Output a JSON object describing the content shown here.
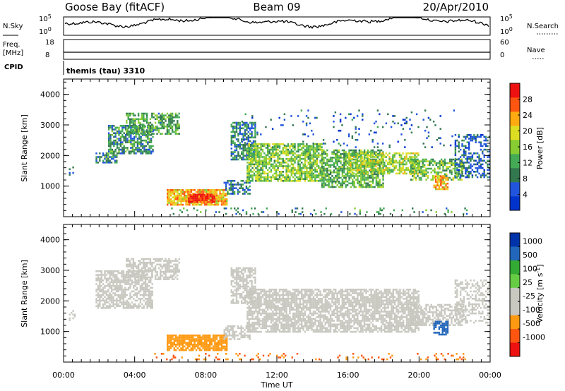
{
  "header": {
    "station": "Goose Bay (fitACF)",
    "beam": "Beam 09",
    "date": "20/Apr/2010"
  },
  "noise_panel": {
    "left_label": "N.Sky",
    "right_label": "N.Search",
    "left_ticks": [
      "10^5",
      "10^0"
    ],
    "right_ticks": [
      "10^5",
      "10^0"
    ]
  },
  "freq_panel": {
    "left_label": "Freq.",
    "left_unit": "[MHz]",
    "right_label": "Nave",
    "left_ticks": [
      "18",
      "8"
    ],
    "right_ticks": [
      "60",
      "0"
    ]
  },
  "cpid_panel": {
    "label": "CPID",
    "value": "themis (tau) 3310"
  },
  "colors": {
    "power": [
      "#0033cc",
      "#2255dd",
      "#33774f",
      "#44aa55",
      "#88cc33",
      "#dddd22",
      "#ffaa11",
      "#ff5511",
      "#ee1111"
    ],
    "velocity": [
      "#ee1111",
      "#ff5511",
      "#ff9911",
      "#c8c8c0",
      "#c8c8c0",
      "#66cc44",
      "#33aa33",
      "#2266bb",
      "#0033aa"
    ]
  },
  "chart_data": [
    {
      "type": "heatmap",
      "name": "power",
      "xlabel": "",
      "ylabel": "Slant Range [km]",
      "yticks": [
        "1000",
        "2000",
        "3000",
        "4000"
      ],
      "ylim": [
        0,
        4500
      ],
      "xlim": [
        0,
        24
      ],
      "colorbar": {
        "label": "Power [dB]",
        "ticks": [
          "4",
          "8",
          "12",
          "16",
          "20",
          "24",
          "28"
        ],
        "range": [
          0,
          32
        ]
      },
      "regions": [
        {
          "t0": 0.3,
          "t1": 0.6,
          "r0": 1350,
          "r1": 1700,
          "value": 6,
          "density": 0.4
        },
        {
          "t0": 1.8,
          "t1": 3.0,
          "r0": 1750,
          "r1": 2100,
          "value": 10,
          "density": 0.7
        },
        {
          "t0": 2.5,
          "t1": 5.0,
          "r0": 2100,
          "r1": 3000,
          "value": 10,
          "density": 0.7
        },
        {
          "t0": 3.5,
          "t1": 6.5,
          "r0": 2700,
          "r1": 3400,
          "value": 12,
          "density": 0.6
        },
        {
          "t0": 5.8,
          "t1": 9.2,
          "r0": 400,
          "r1": 900,
          "value": 22,
          "density": 0.85
        },
        {
          "t0": 7.0,
          "t1": 8.5,
          "r0": 450,
          "r1": 750,
          "value": 29,
          "density": 0.9
        },
        {
          "t0": 9.0,
          "t1": 10.5,
          "r0": 750,
          "r1": 1200,
          "value": 8,
          "density": 0.6
        },
        {
          "t0": 9.4,
          "t1": 10.8,
          "r0": 1900,
          "r1": 3100,
          "value": 9,
          "density": 0.65
        },
        {
          "t0": 10.3,
          "t1": 14.5,
          "r0": 1200,
          "r1": 2400,
          "value": 15,
          "density": 0.75
        },
        {
          "t0": 14.5,
          "t1": 18.0,
          "r0": 1000,
          "r1": 2200,
          "value": 13,
          "density": 0.7
        },
        {
          "t0": 16.0,
          "t1": 20.0,
          "r0": 1400,
          "r1": 2100,
          "value": 17,
          "density": 0.65
        },
        {
          "t0": 19.5,
          "t1": 22.5,
          "r0": 1200,
          "r1": 1900,
          "value": 14,
          "density": 0.6
        },
        {
          "t0": 20.8,
          "t1": 21.6,
          "r0": 900,
          "r1": 1350,
          "value": 22,
          "density": 0.7
        },
        {
          "t0": 22.0,
          "t1": 24.0,
          "r0": 1300,
          "r1": 2700,
          "value": 7,
          "density": 0.4
        },
        {
          "t0": 10.0,
          "t1": 22.0,
          "r0": 2300,
          "r1": 3500,
          "value": 6,
          "density": 0.05
        },
        {
          "t0": 5.0,
          "t1": 23.0,
          "r0": 100,
          "r1": 300,
          "value": 10,
          "density": 0.12
        }
      ]
    },
    {
      "type": "heatmap",
      "name": "velocity",
      "xlabel": "Time UT",
      "ylabel": "Slant Range [km]",
      "yticks": [
        "1000",
        "2000",
        "3000",
        "4000"
      ],
      "ylim": [
        0,
        4500
      ],
      "xlim": [
        0,
        24
      ],
      "xticks": [
        "00:00",
        "04:00",
        "08:00",
        "12:00",
        "16:00",
        "20:00",
        "00:00"
      ],
      "colorbar": {
        "label": "Velocity [m s^-1]",
        "ticks": [
          "1000",
          "500",
          "100",
          "25",
          "-25",
          "-100",
          "-500",
          "-1000"
        ]
      },
      "regions": [
        {
          "t0": 0.3,
          "t1": 0.6,
          "r0": 1350,
          "r1": 1700,
          "value": 0,
          "density": 0.4
        },
        {
          "t0": 1.8,
          "t1": 5.0,
          "r0": 1750,
          "r1": 3000,
          "value": 0,
          "density": 0.7
        },
        {
          "t0": 3.5,
          "t1": 6.5,
          "r0": 2700,
          "r1": 3400,
          "value": 0,
          "density": 0.6
        },
        {
          "t0": 5.8,
          "t1": 9.2,
          "r0": 400,
          "r1": 900,
          "value": -150,
          "density": 0.85
        },
        {
          "t0": 9.0,
          "t1": 10.5,
          "r0": 750,
          "r1": 1200,
          "value": 0,
          "density": 0.6
        },
        {
          "t0": 9.4,
          "t1": 10.8,
          "r0": 1900,
          "r1": 3100,
          "value": 0,
          "density": 0.65
        },
        {
          "t0": 10.3,
          "t1": 20.0,
          "r0": 1000,
          "r1": 2400,
          "value": 0,
          "density": 0.75
        },
        {
          "t0": 19.5,
          "t1": 22.5,
          "r0": 1200,
          "r1": 1900,
          "value": 0,
          "density": 0.6
        },
        {
          "t0": 20.8,
          "t1": 21.6,
          "r0": 900,
          "r1": 1350,
          "value": 600,
          "density": 0.7
        },
        {
          "t0": 22.0,
          "t1": 24.0,
          "r0": 1300,
          "r1": 2700,
          "value": 0,
          "density": 0.4
        },
        {
          "t0": 5.0,
          "t1": 23.0,
          "r0": 100,
          "r1": 300,
          "value": -300,
          "density": 0.12
        }
      ]
    }
  ]
}
